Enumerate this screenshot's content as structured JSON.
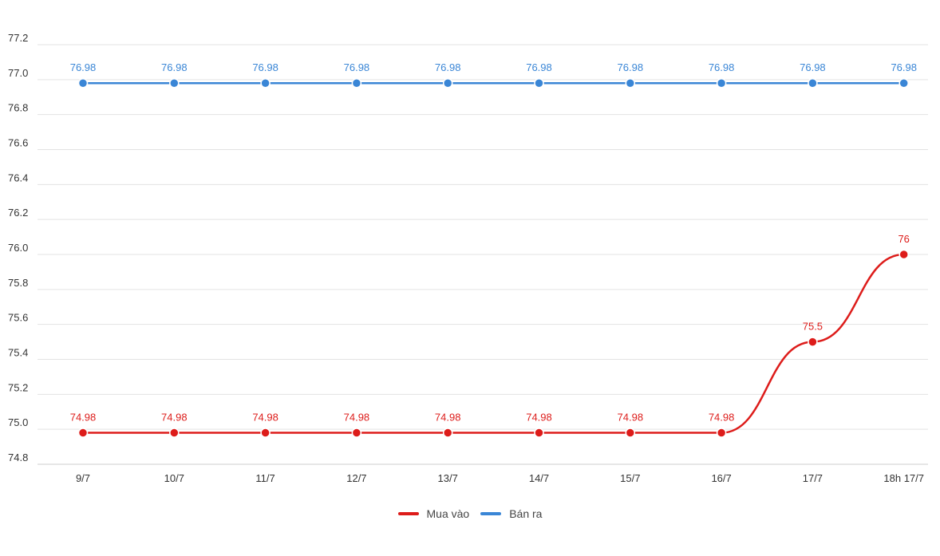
{
  "chart_data": {
    "type": "line",
    "title": "",
    "xlabel": "",
    "ylabel": "",
    "categories": [
      "9/7",
      "10/7",
      "11/7",
      "12/7",
      "13/7",
      "14/7",
      "15/7",
      "16/7",
      "17/7",
      "18h 17/7"
    ],
    "ylim": [
      74.8,
      77.2
    ],
    "yticks": [
      "74.8",
      "75.0",
      "75.2",
      "75.4",
      "75.6",
      "75.8",
      "76.0",
      "76.2",
      "76.4",
      "76.6",
      "76.8",
      "77.0",
      "77.2"
    ],
    "grid": true,
    "legend_position": "bottom-center",
    "series": [
      {
        "name": "Mua vào",
        "color": "#dd1c1a",
        "values": [
          74.98,
          74.98,
          74.98,
          74.98,
          74.98,
          74.98,
          74.98,
          74.98,
          75.5,
          76
        ],
        "labels": [
          "74.98",
          "74.98",
          "74.98",
          "74.98",
          "74.98",
          "74.98",
          "74.98",
          "74.98",
          "75.5",
          "76"
        ]
      },
      {
        "name": "Bán ra",
        "color": "#3a86d6",
        "values": [
          76.98,
          76.98,
          76.98,
          76.98,
          76.98,
          76.98,
          76.98,
          76.98,
          76.98,
          76.98
        ],
        "labels": [
          "76.98",
          "76.98",
          "76.98",
          "76.98",
          "76.98",
          "76.98",
          "76.98",
          "76.98",
          "76.98",
          "76.98"
        ]
      }
    ]
  }
}
